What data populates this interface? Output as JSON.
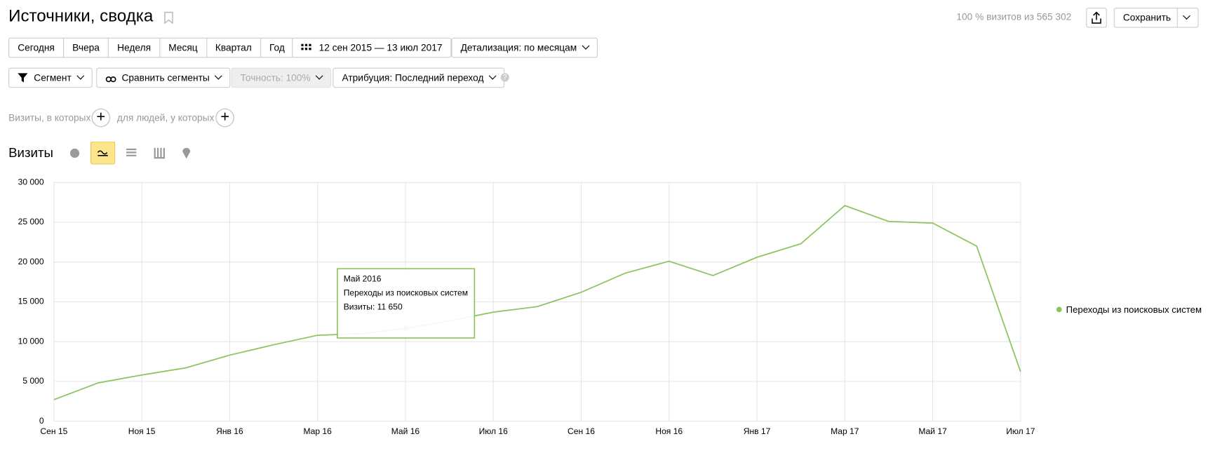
{
  "header": {
    "title": "Источники, сводка",
    "visits_info": "100 % визитов из 565 302",
    "save": "Сохранить"
  },
  "periods": [
    "Сегодня",
    "Вчера",
    "Неделя",
    "Месяц",
    "Квартал",
    "Год"
  ],
  "date_range": "12 сен 2015 — 13 июл 2017",
  "detail": "Детализация: по месяцам",
  "segment": "Сегмент",
  "compare": "Сравнить сегменты",
  "accuracy": "Точность: 100%",
  "attribution": "Атрибуция: Последний переход",
  "filters": {
    "visits": "Визиты, в которых",
    "people": "для людей, у которых"
  },
  "metric": "Визиты",
  "chart_data": {
    "type": "line",
    "categories": [
      "Сен 15",
      null,
      "Ноя 15",
      null,
      "Янв 16",
      null,
      "Мар 16",
      null,
      "Май 16",
      null,
      "Июл 16",
      null,
      "Сен 16",
      null,
      "Ноя 16",
      null,
      "Янв 17",
      null,
      "Мар 17",
      null,
      "Май 17",
      null,
      "Июл 17"
    ],
    "series": [
      {
        "name": "Переходы из поисковых систем",
        "color": "#8cc55e",
        "values": [
          2700,
          4800,
          5800,
          6700,
          8300,
          9600,
          10800,
          11000,
          11650,
          12600,
          13700,
          14400,
          16200,
          18600,
          20100,
          18300,
          20600,
          22300,
          27100,
          25100,
          24900,
          22000,
          6200
        ]
      }
    ],
    "ylim": [
      0,
      30000
    ],
    "yticks": [
      0,
      {
        "value": 5000,
        "label": "5 000"
      },
      {
        "value": 10000,
        "label": "10 000"
      },
      {
        "value": 15000,
        "label": "15 000"
      },
      {
        "value": 20000,
        "label": "20 000"
      },
      {
        "value": 25000,
        "label": "25 000"
      },
      {
        "value": 30000,
        "label": "30 000"
      }
    ],
    "grid": true,
    "tooltip": {
      "title": "Май 2016",
      "series": "Переходы из поисковых систем",
      "value": "Визиты: 11 650"
    }
  }
}
